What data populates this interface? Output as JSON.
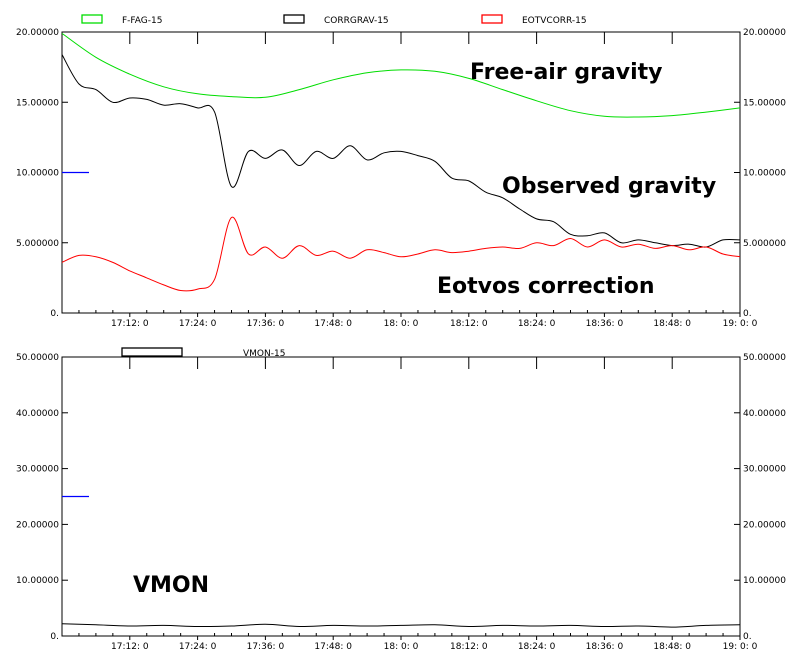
{
  "chart_data": [
    {
      "type": "line",
      "xlabel": "",
      "ylabel": "",
      "x_ticks": [
        "17:12: 0",
        "17:24: 0",
        "17:36: 0",
        "17:48: 0",
        "18: 0: 0",
        "18:12: 0",
        "18:24: 0",
        "18:36: 0",
        "18:48: 0",
        "19: 0: 0"
      ],
      "x_range_min": [
        17.0,
        19.0
      ],
      "ylim": [
        0,
        20
      ],
      "y_ticks": [
        "0.",
        "5.000000",
        "10.00000",
        "15.00000",
        "20.00000"
      ],
      "y_ticks_right": [
        "0.",
        "5.000000",
        "10.00000",
        "15.00000",
        "20.00000"
      ],
      "legend_placement": "top",
      "annotations": [
        "Free-air gravity",
        "Observed gravity",
        "Eotvos correction"
      ],
      "series": [
        {
          "name": "F-FAG-15",
          "color": "#00dd00",
          "x": [
            0,
            6,
            12,
            18,
            24,
            30,
            36,
            42,
            48,
            54,
            60,
            66,
            72,
            78,
            84,
            90,
            96,
            102,
            108,
            114,
            120
          ],
          "y": [
            19.9,
            18.2,
            17.0,
            16.1,
            15.6,
            15.4,
            15.35,
            15.9,
            16.6,
            17.1,
            17.3,
            17.2,
            16.7,
            15.9,
            15.1,
            14.4,
            14.0,
            13.95,
            14.05,
            14.3,
            14.6
          ]
        },
        {
          "name": "CORRGRAV-15",
          "color": "#000000",
          "x": [
            0,
            3,
            6,
            9,
            12,
            15,
            18,
            21,
            24,
            27,
            30,
            33,
            36,
            39,
            42,
            45,
            48,
            51,
            54,
            57,
            60,
            63,
            66,
            69,
            72,
            75,
            78,
            81,
            84,
            87,
            90,
            93,
            96,
            99,
            102,
            105,
            108,
            111,
            114,
            117,
            120
          ],
          "y": [
            18.4,
            16.3,
            15.9,
            15.0,
            15.3,
            15.2,
            14.8,
            14.9,
            14.6,
            14.3,
            9.0,
            11.5,
            11.0,
            11.6,
            10.5,
            11.5,
            11.0,
            11.9,
            10.9,
            11.4,
            11.5,
            11.2,
            10.8,
            9.6,
            9.4,
            8.6,
            8.2,
            7.4,
            6.7,
            6.5,
            5.6,
            5.5,
            5.7,
            5.0,
            5.2,
            5.0,
            4.8,
            4.9,
            4.7,
            5.2,
            5.2
          ]
        },
        {
          "name": "EOTVCORR-15",
          "color": "#ff0000",
          "x": [
            0,
            3,
            6,
            9,
            12,
            15,
            18,
            21,
            24,
            27,
            30,
            33,
            36,
            39,
            42,
            45,
            48,
            51,
            54,
            57,
            60,
            63,
            66,
            69,
            72,
            75,
            78,
            81,
            84,
            87,
            90,
            93,
            96,
            99,
            102,
            105,
            108,
            111,
            114,
            117,
            120
          ],
          "y": [
            3.6,
            4.1,
            4.0,
            3.6,
            3.0,
            2.5,
            2.0,
            1.6,
            1.7,
            2.4,
            6.8,
            4.2,
            4.7,
            3.9,
            4.8,
            4.1,
            4.4,
            3.9,
            4.5,
            4.3,
            4.0,
            4.2,
            4.5,
            4.3,
            4.4,
            4.6,
            4.7,
            4.6,
            5.0,
            4.8,
            5.3,
            4.7,
            5.2,
            4.7,
            4.9,
            4.6,
            4.8,
            4.5,
            4.7,
            4.2,
            4.0
          ]
        }
      ]
    },
    {
      "type": "line",
      "xlabel": "",
      "ylabel": "",
      "x_ticks": [
        "17:12: 0",
        "17:24: 0",
        "17:36: 0",
        "17:48: 0",
        "18: 0: 0",
        "18:12: 0",
        "18:24: 0",
        "18:36: 0",
        "18:48: 0",
        "19: 0: 0"
      ],
      "x_range_min": [
        17.0,
        19.0
      ],
      "ylim": [
        0,
        50
      ],
      "y_ticks": [
        "0.",
        "10.00000",
        "20.00000",
        "30.00000",
        "40.00000",
        "50.00000"
      ],
      "y_ticks_right": [
        "0.",
        "10.00000",
        "20.00000",
        "30.00000",
        "40.00000",
        "50.00000"
      ],
      "legend_placement": "top",
      "annotations": [
        "VMON"
      ],
      "series": [
        {
          "name": "VMON-15",
          "color": "#000000",
          "x": [
            0,
            6,
            12,
            18,
            24,
            30,
            36,
            42,
            48,
            54,
            60,
            66,
            72,
            78,
            84,
            90,
            96,
            102,
            108,
            114,
            120
          ],
          "y": [
            2.2,
            2.0,
            1.8,
            1.9,
            1.7,
            1.8,
            2.1,
            1.7,
            1.9,
            1.8,
            1.9,
            2.0,
            1.7,
            1.9,
            1.8,
            1.9,
            1.7,
            1.8,
            1.6,
            1.9,
            2.0
          ]
        }
      ]
    }
  ]
}
